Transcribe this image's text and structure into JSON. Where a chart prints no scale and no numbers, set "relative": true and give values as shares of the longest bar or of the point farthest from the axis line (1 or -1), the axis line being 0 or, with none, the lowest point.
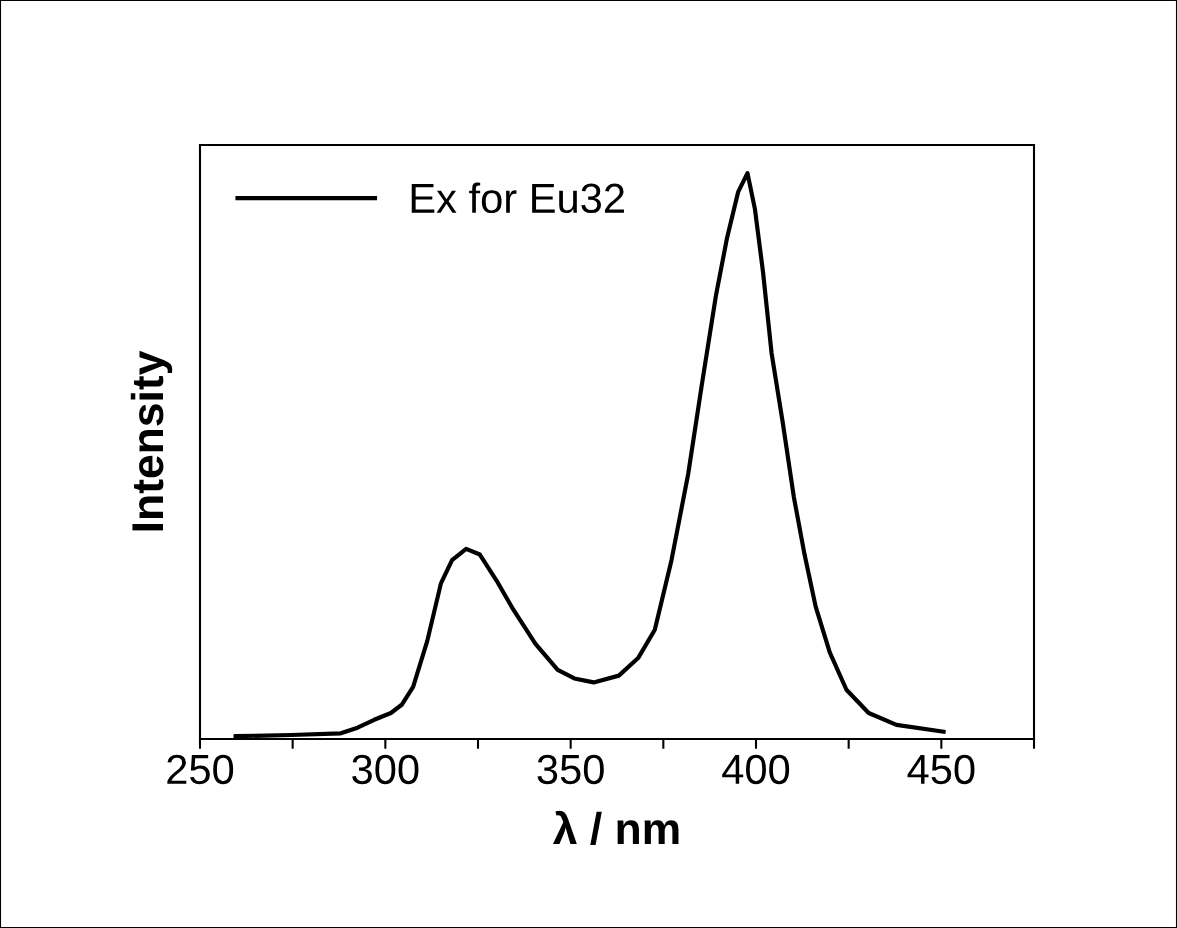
{
  "chart_data": {
    "type": "line",
    "xlabel": "λ / nm",
    "ylabel": "Intensity",
    "relative": true,
    "xlim": [
      250,
      475
    ],
    "xticks": [
      250,
      {
        "value": 275,
        "label": null
      },
      300,
      {
        "value": 325,
        "label": null
      },
      350,
      {
        "value": 375,
        "label": null
      },
      400,
      {
        "value": 425,
        "label": null
      },
      450,
      {
        "value": 475,
        "label": null
      }
    ],
    "legend": "top left",
    "grid": false,
    "line_style": "solid",
    "marker": "none",
    "series": [
      {
        "name": "Ex for Eu32",
        "color": "#000000",
        "x": [
          259.6,
          274.6,
          288,
          292.5,
          297,
          301.5,
          304.5,
          307.5,
          311.3,
          315,
          318,
          321.8,
          325.5,
          330,
          334.5,
          340.5,
          346.5,
          351,
          356.2,
          363,
          368.2,
          372.7,
          377.2,
          381.7,
          385.5,
          389.2,
          392.2,
          395.2,
          397.7,
          399.7,
          401.9,
          404.2,
          407.2,
          410.2,
          413.1,
          416.1,
          419.9,
          424.4,
          430.4,
          437.9,
          450.6
        ],
        "values": [
          0.005,
          0.007,
          0.01,
          0.02,
          0.034,
          0.046,
          0.061,
          0.092,
          0.173,
          0.275,
          0.316,
          0.336,
          0.326,
          0.28,
          0.229,
          0.168,
          0.122,
          0.107,
          0.1,
          0.112,
          0.143,
          0.193,
          0.316,
          0.468,
          0.631,
          0.784,
          0.886,
          0.967,
          1.0,
          0.937,
          0.825,
          0.682,
          0.56,
          0.428,
          0.326,
          0.234,
          0.153,
          0.087,
          0.046,
          0.025,
          0.013
        ]
      }
    ]
  }
}
